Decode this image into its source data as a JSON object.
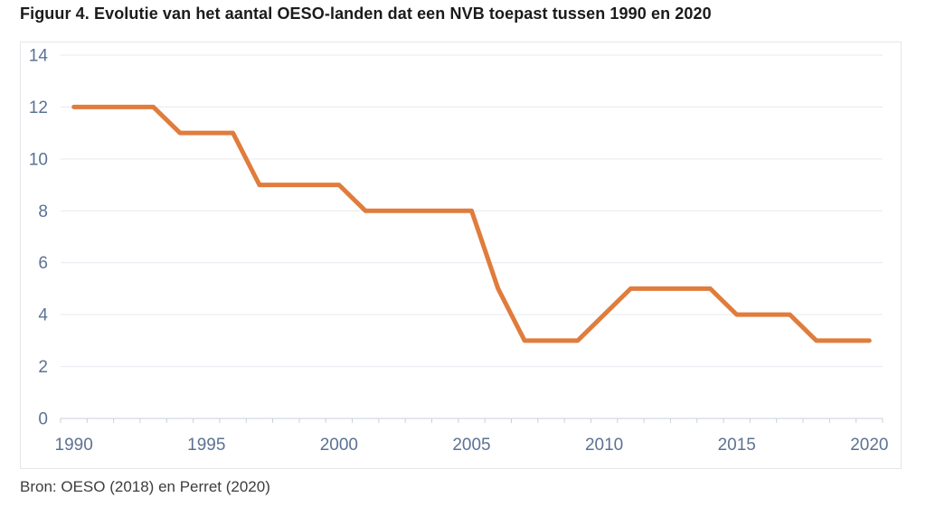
{
  "figure": {
    "title": "Figuur 4. Evolutie van het aantal OESO-landen dat een NVB toepast tussen 1990 en 2020",
    "source": "Bron: OESO (2018) en Perret (2020)"
  },
  "style": {
    "title_color": "#1b1b1b",
    "source_color": "#3d3d3d",
    "grid_color": "#e6e9ef",
    "axis_color": "#c9d0db",
    "tick_label_color": "#5c7293",
    "chart_border_color": "#e4e6ea",
    "background_color": "#ffffff"
  },
  "chart_data": {
    "type": "line",
    "title": "Figuur 4. Evolutie van het aantal OESO-landen dat een NVB toepast tussen 1990 en 2020",
    "source": "Bron: OESO (2018) en Perret (2020)",
    "x": [
      1990,
      1991,
      1992,
      1993,
      1994,
      1995,
      1996,
      1997,
      1998,
      1999,
      2000,
      2001,
      2002,
      2003,
      2004,
      2005,
      2006,
      2007,
      2008,
      2009,
      2010,
      2011,
      2012,
      2013,
      2014,
      2015,
      2016,
      2017,
      2018,
      2019,
      2020
    ],
    "values": [
      12,
      12,
      12,
      12,
      11,
      11,
      11,
      9,
      9,
      9,
      9,
      8,
      8,
      8,
      8,
      8,
      5,
      3,
      3,
      3,
      4,
      5,
      5,
      5,
      5,
      4,
      4,
      4,
      3,
      3,
      3
    ],
    "series_color": "#e07c3c",
    "line_width": 5,
    "ylim": [
      0,
      14
    ],
    "yticks": [
      0,
      2,
      4,
      6,
      8,
      10,
      12,
      14
    ],
    "xtick_labels": [
      "1990",
      "1995",
      "2000",
      "2005",
      "2010",
      "2015",
      "2020"
    ],
    "xlabel": "",
    "ylabel": "",
    "grid": "horizontal",
    "legend": "none"
  }
}
